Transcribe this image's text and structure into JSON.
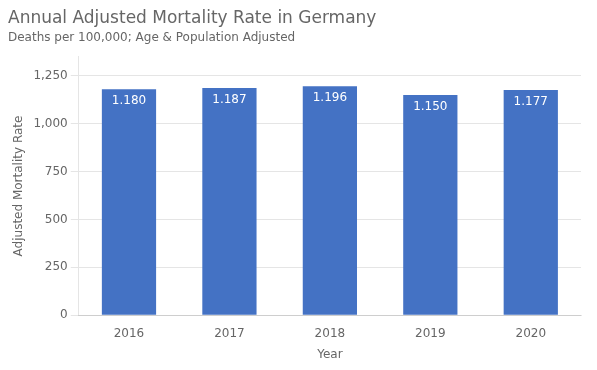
{
  "chart_data": {
    "type": "bar",
    "title": "Annual Adjusted Mortality Rate in Germany",
    "subtitle": "Deaths per 100,000; Age & Population Adjusted",
    "x_label": "Year",
    "y_label": "Adjusted Mortality Rate",
    "categories": [
      "2016",
      "2017",
      "2018",
      "2019",
      "2020"
    ],
    "values": [
      1180,
      1187,
      1196,
      1150,
      1177
    ],
    "value_labels": [
      "1.180",
      "1.187",
      "1.196",
      "1.150",
      "1.177"
    ],
    "data_labels": true,
    "color": "#4472C4",
    "ylim": [
      0,
      1350
    ],
    "yticks": [
      0,
      250,
      500,
      750,
      {
        "value": 1000,
        "label": "1,000"
      },
      {
        "value": 1250,
        "label": "1,250"
      }
    ],
    "grid": true
  }
}
